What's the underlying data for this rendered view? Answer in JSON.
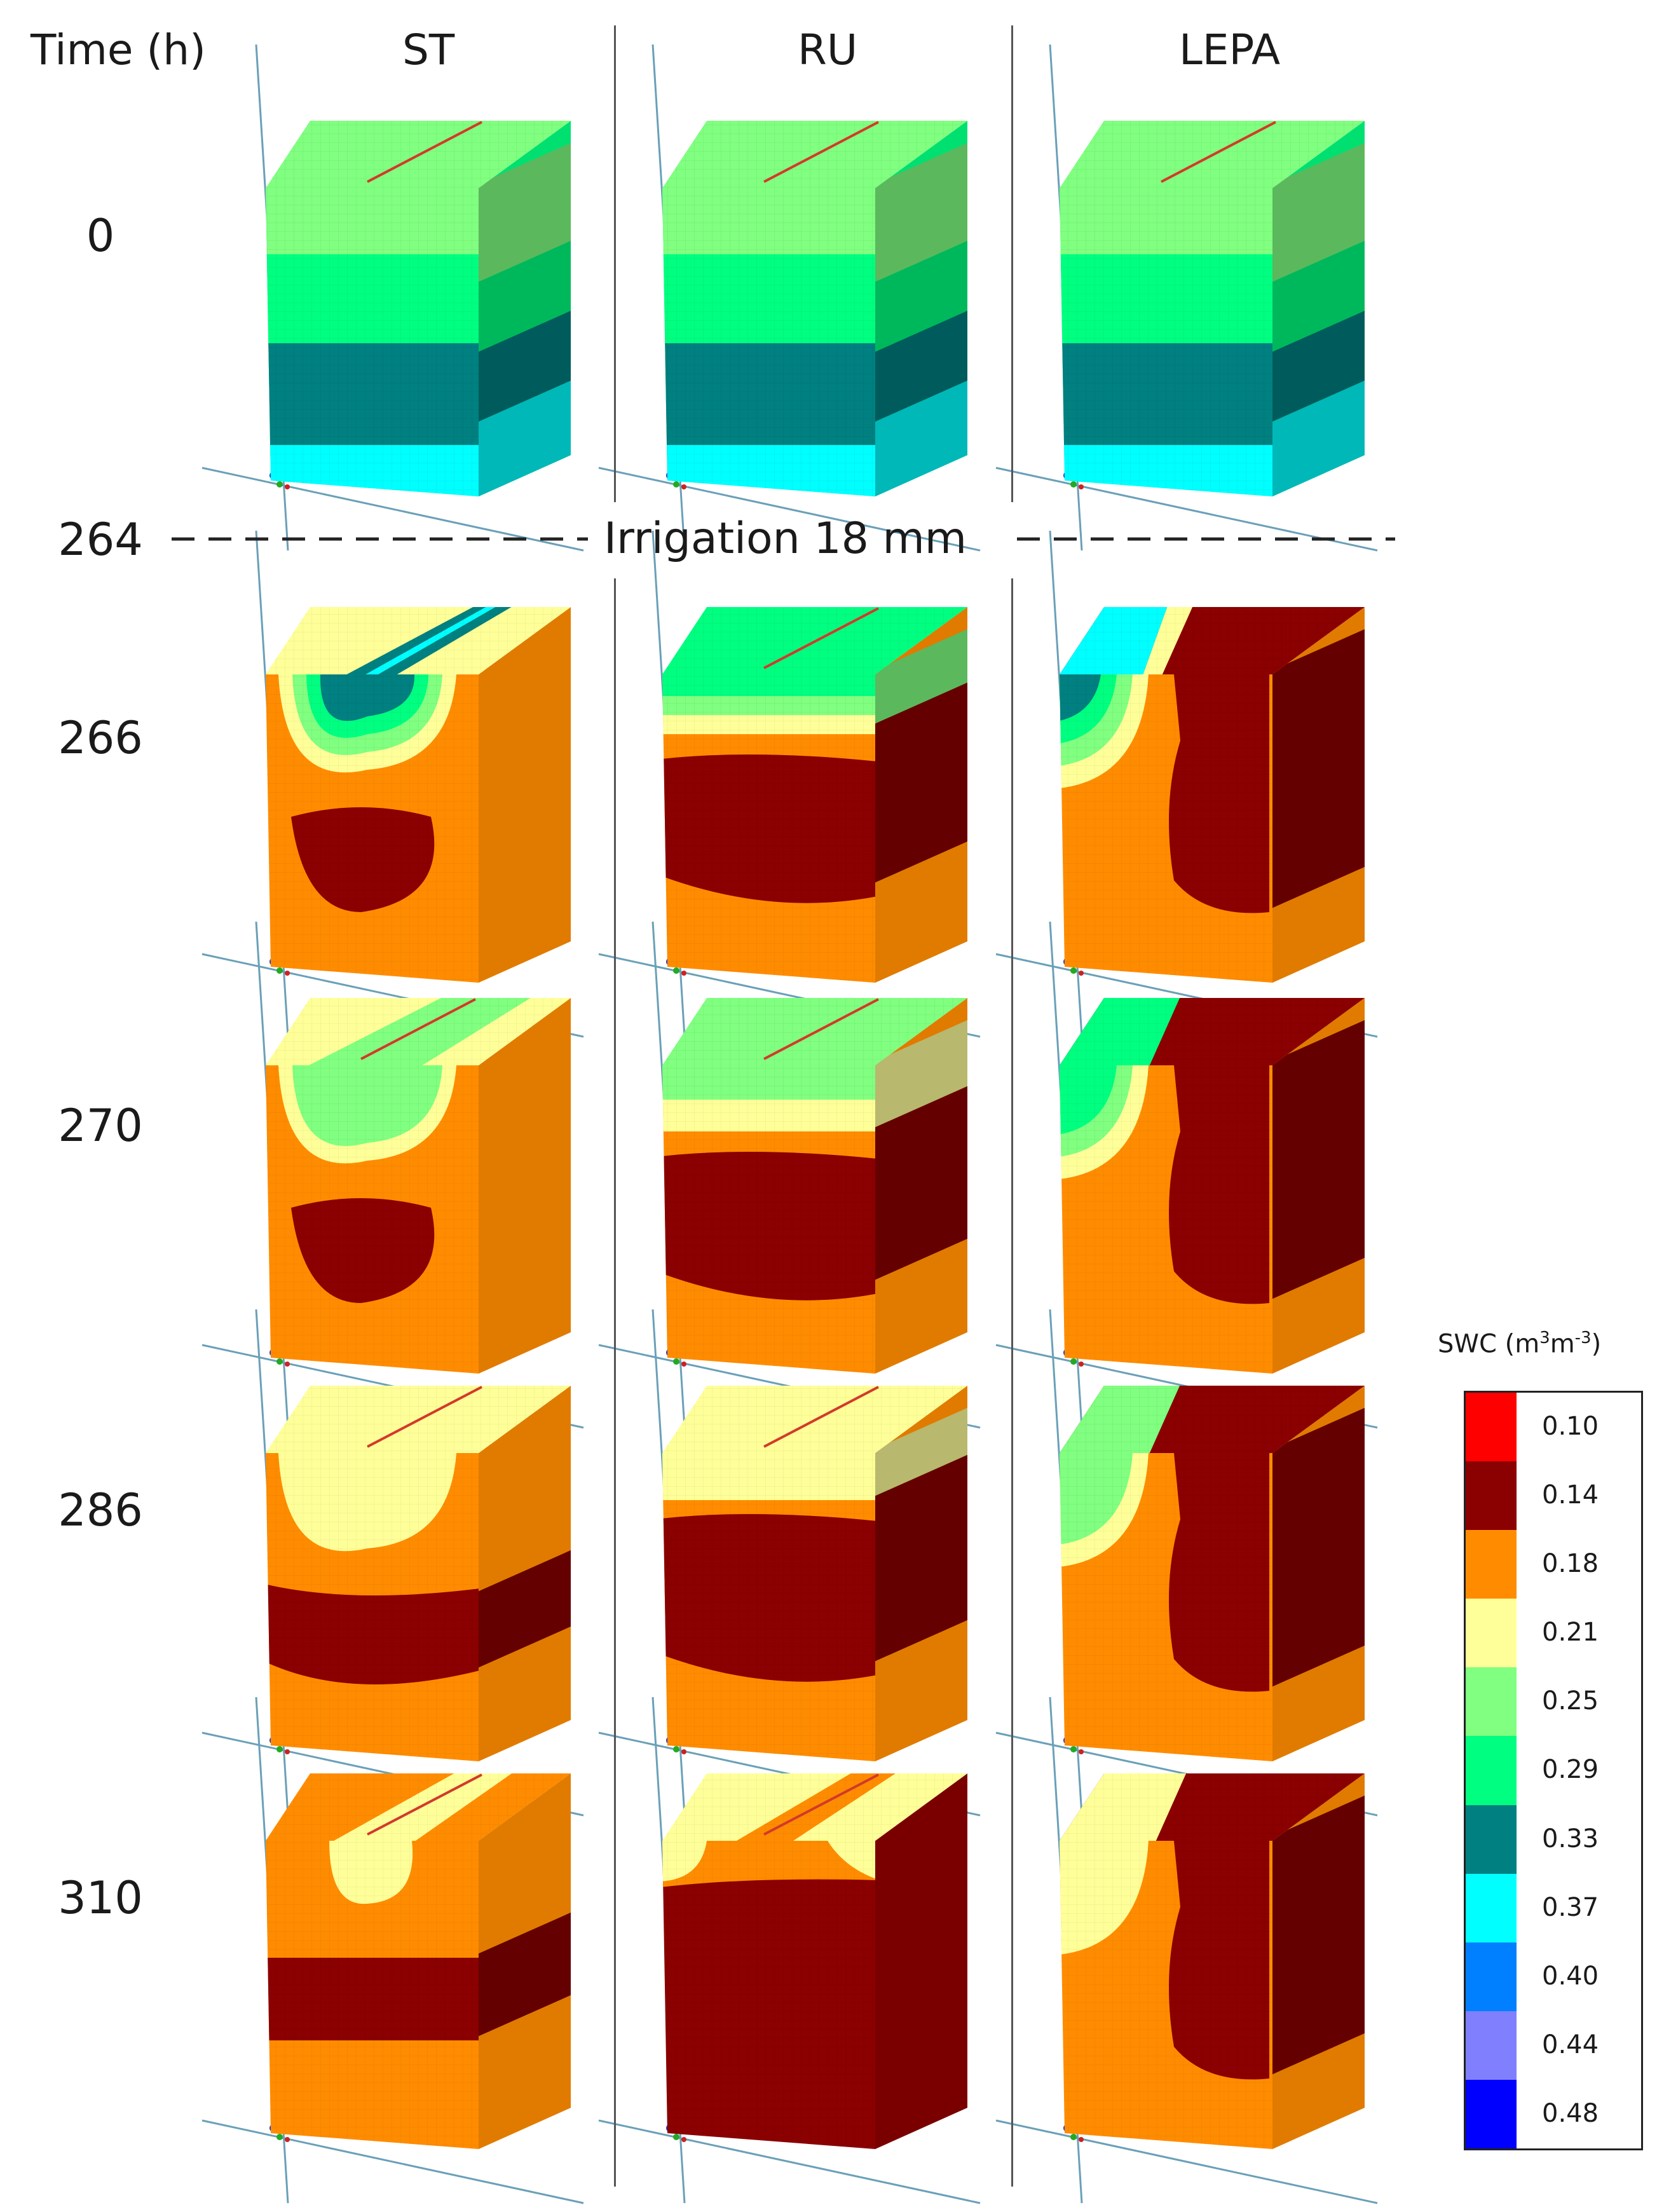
{
  "header": {
    "time_label": "Time (h)",
    "columns": [
      "ST",
      "RU",
      "LEPA"
    ]
  },
  "times": [
    "0",
    "264",
    "266",
    "270",
    "286",
    "310"
  ],
  "irrigation_label": "Irrigation 18 mm",
  "legend": {
    "title_prefix": "SWC (m",
    "title_sup1": "3",
    "title_mid": "m",
    "title_sup2": "-3",
    "title_suffix": ")",
    "classes": [
      {
        "label": "0.10",
        "color": "#ff0000"
      },
      {
        "label": "0.14",
        "color": "#8b0000"
      },
      {
        "label": "0.18",
        "color": "#ff8c00"
      },
      {
        "label": "0.21",
        "color": "#ffff99"
      },
      {
        "label": "0.25",
        "color": "#80ff80"
      },
      {
        "label": "0.29",
        "color": "#00ff80"
      },
      {
        "label": "0.33",
        "color": "#008080"
      },
      {
        "label": "0.37",
        "color": "#00ffff"
      },
      {
        "label": "0.40",
        "color": "#0080ff"
      },
      {
        "label": "0.44",
        "color": "#8080ff"
      },
      {
        "label": "0.48",
        "color": "#0000ff"
      }
    ]
  }
}
